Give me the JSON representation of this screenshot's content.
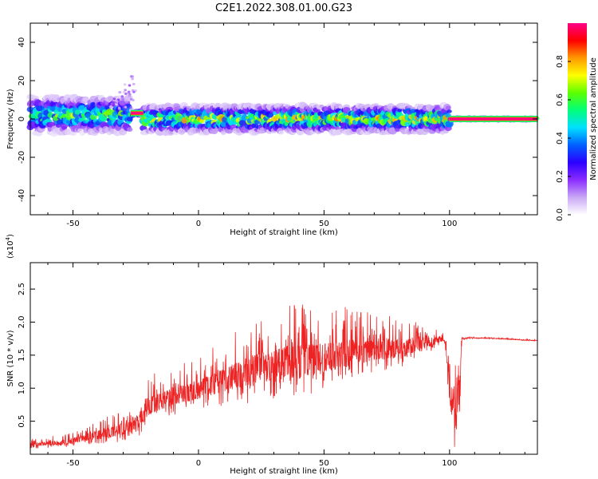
{
  "figure": {
    "title": "C2E1.2022.308.01.00.G23"
  },
  "chart_data": [
    {
      "type": "heatmap",
      "xlabel": "Height of straight line (km)",
      "ylabel": "Frequency (Hz)",
      "xlim": [
        -67,
        135
      ],
      "ylim": [
        -50,
        50
      ],
      "x_ticks": [
        -50,
        0,
        50,
        100
      ],
      "y_ticks": [
        -40,
        -20,
        0,
        20,
        40
      ],
      "colorbar": {
        "label": "Normalized spectral amplitude",
        "range": [
          0,
          1
        ],
        "ticks": [
          0.0,
          0.2,
          0.4,
          0.6,
          0.8
        ],
        "colormap": [
          "#ffffff",
          "#c9a8f5",
          "#8b2cff",
          "#2a00ff",
          "#0060ff",
          "#00e0ff",
          "#00ff7a",
          "#5cff00",
          "#ffff00",
          "#ff9900",
          "#ff0000",
          "#ff0088"
        ]
      },
      "trace": {
        "segments": [
          {
            "x": [
              -67,
              -27
            ],
            "center_hz": 2,
            "spread_hz": 12,
            "peak": 0.6
          },
          {
            "x": [
              -27,
              -22
            ],
            "center_hz": 3,
            "spread_hz": 2,
            "peak": 1.0
          },
          {
            "x": [
              -22,
              100
            ],
            "center_hz": 0,
            "spread_hz": 9,
            "peak": 0.7
          },
          {
            "x": [
              100,
              135
            ],
            "center_hz": 0,
            "spread_hz": 1,
            "peak": 1.0
          }
        ],
        "plume": {
          "x": [
            -35,
            -25
          ],
          "max_hz": 22
        }
      }
    },
    {
      "type": "line",
      "xlabel": "Height of straight line (km)",
      "ylabel": "SNR (10 * v/v)",
      "y_multiplier": "(x10^4)",
      "xlim": [
        -67,
        135
      ],
      "ylim": [
        0,
        2.9
      ],
      "x_ticks": [
        -50,
        0,
        50,
        100
      ],
      "y_ticks": [
        0.5,
        1.0,
        1.5,
        2.0,
        2.5
      ],
      "series": [
        {
          "color": "#ee2222",
          "envelope": {
            "x": [
              -67,
              -55,
              -45,
              -35,
              -25,
              -20,
              -10,
              0,
              10,
              20,
              30,
              40,
              50,
              60,
              70,
              80,
              90,
              98,
              100,
              102,
              104,
              105,
              110,
              120,
              135
            ],
            "base": [
              0.15,
              0.18,
              0.25,
              0.35,
              0.45,
              0.75,
              0.9,
              1.0,
              1.15,
              1.3,
              1.4,
              1.45,
              1.5,
              1.55,
              1.6,
              1.62,
              1.7,
              1.75,
              1.0,
              0.6,
              1.0,
              1.75,
              1.76,
              1.75,
              1.72
            ],
            "amplitude": [
              0.12,
              0.15,
              0.2,
              0.35,
              0.45,
              0.6,
              0.6,
              0.65,
              0.8,
              1.0,
              1.1,
              1.15,
              1.0,
              0.9,
              0.7,
              0.6,
              0.4,
              0.1,
              0.8,
              1.2,
              0.8,
              0.03,
              0.02,
              0.02,
              0.02
            ]
          }
        }
      ]
    }
  ]
}
